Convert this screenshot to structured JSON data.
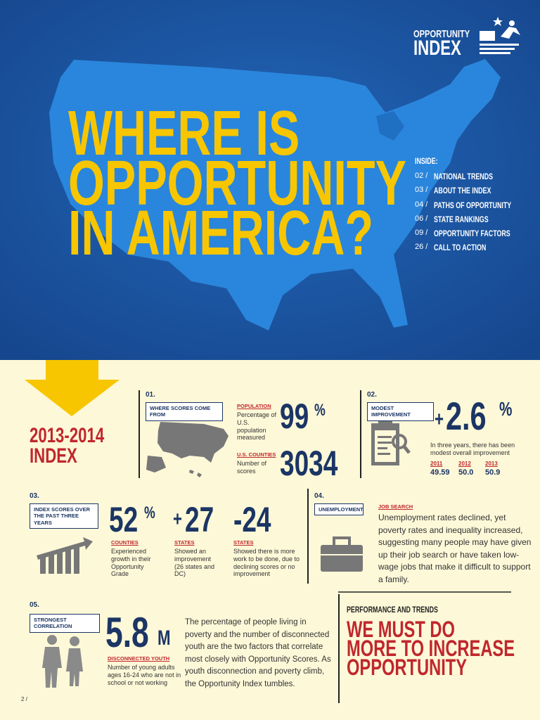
{
  "logo": {
    "line1": "OPPORTUNITY",
    "line2": "INDEX"
  },
  "hero": {
    "title_lines": [
      "WHERE IS",
      "OPPORTUNITY",
      "IN AMERICA?"
    ]
  },
  "inside": {
    "heading": "INSIDE:",
    "items": [
      {
        "page": "02 /",
        "label": "NATIONAL TRENDS"
      },
      {
        "page": "03 /",
        "label": "ABOUT THE INDEX"
      },
      {
        "page": "04 /",
        "label": "PATHS OF OPPORTUNITY"
      },
      {
        "page": "06 /",
        "label": "STATE RANKINGS"
      },
      {
        "page": "09 /",
        "label": "OPPORTUNITY FACTORS"
      },
      {
        "page": "26 /",
        "label": "CALL TO ACTION"
      }
    ]
  },
  "index_label": {
    "years": "2013-2014",
    "word": "INDEX"
  },
  "section1": {
    "number": "01.",
    "tag": "WHERE SCORES COME FROM",
    "stats": [
      {
        "label": "POPULATION",
        "desc": "Percentage of U.S. population measured",
        "value": "99",
        "unit": "%"
      },
      {
        "label": "U.S. COUNTIES",
        "desc": "Number of scores",
        "value": "3034"
      }
    ]
  },
  "section2": {
    "number": "02.",
    "tag": "MODEST IMPROVEMENT",
    "sign": "+",
    "value": "2.6",
    "unit": "%",
    "desc": "In three years, there has been modest overall improvement",
    "years": [
      {
        "year": "2011",
        "score": "49.59"
      },
      {
        "year": "2012",
        "score": "50.0"
      },
      {
        "year": "2013",
        "score": "50.9"
      }
    ]
  },
  "section3": {
    "number": "03.",
    "tag": "INDEX SCORES OVER THE PAST THREE YEARS",
    "stats": [
      {
        "value": "52",
        "unit": "%",
        "label": "COUNTIES",
        "desc": "Experienced growth in their Opportunity Grade"
      },
      {
        "sign": "+",
        "value": "27",
        "label": "STATES",
        "desc": "Showed an improvement (26 states and DC)"
      },
      {
        "value": "-24",
        "label": "STATES",
        "desc": "Showed there is more work to be done, due to declining scores or no improvement"
      }
    ]
  },
  "section4": {
    "number": "04.",
    "tag": "UNEMPLOYMENT",
    "label": "JOB SEARCH",
    "text": "Unemployment rates declined, yet poverty rates and inequality increased, suggesting many people may have given up their job search or have taken low-wage jobs that make it difficult to support a family."
  },
  "section5": {
    "number": "05.",
    "tag": "STRONGEST CORRELATION",
    "value": "5.8",
    "unit": "M",
    "label": "DISCONNECTED YOUTH",
    "desc": "Number of young adults ages 16-24 who are not in school or not working",
    "text": "The percentage of people living in poverty and the number of disconnected youth are the two factors that correlate most closely with Opportunity Scores. As youth disconnection and poverty climb, the Opportunity Index tumbles."
  },
  "performance": {
    "kicker": "PERFORMANCE AND TRENDS",
    "headline_lines": [
      "WE MUST DO",
      "MORE TO INCREASE",
      "OPPORTUNITY"
    ]
  },
  "footer": {
    "page": "2 /"
  }
}
